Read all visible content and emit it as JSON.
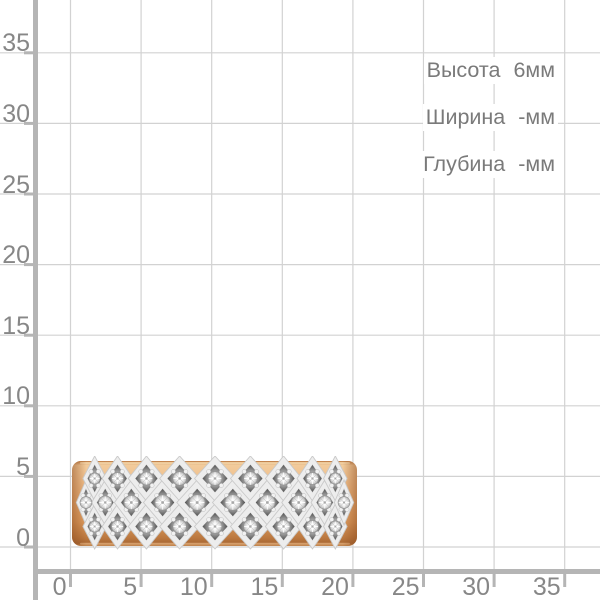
{
  "page": {
    "background": "#ffffff"
  },
  "grid": {
    "x_labels": [
      "0",
      "5",
      "10",
      "15",
      "20",
      "25",
      "30",
      "35"
    ],
    "y_labels": [
      "0",
      "5",
      "10",
      "15",
      "20",
      "25",
      "30",
      "35"
    ],
    "unit_suffix": "mm-grid",
    "gridline_color": "#d2d2d2",
    "axis_color": "#b5b5b5",
    "label_color": "#878787"
  },
  "specs": {
    "text_color": "#7a7a7a",
    "rows": [
      {
        "label": "Высота",
        "value": "6мм"
      },
      {
        "label": "Ширина",
        "value": "-мм"
      },
      {
        "label": "Глубина",
        "value": "-мм"
      }
    ]
  },
  "ring": {
    "type": "gold-ring-side-view-with-diamond-pave",
    "band_color": "#e9ae74",
    "band_edge_color": "#bc7940",
    "pave_metal_color": "#ededed",
    "recess_color": "#6e6e6e",
    "stone_color": "#ffffff",
    "rows_of_stones": 3,
    "stone_count": 28
  }
}
